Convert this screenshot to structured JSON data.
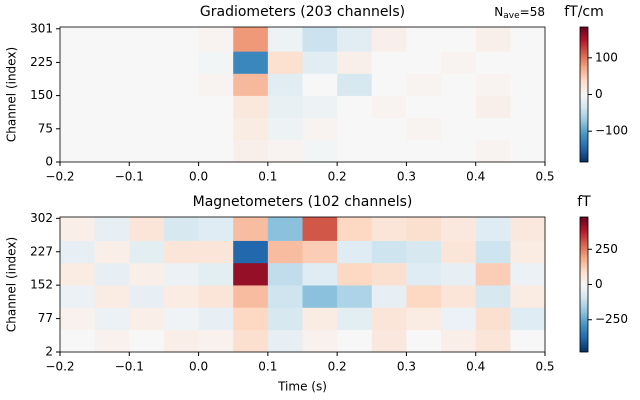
{
  "chart_data": [
    {
      "type": "heatmap",
      "title": "Gradiometers (203 channels)",
      "ylabel": "Channel (index)",
      "annotation": {
        "symbol": "N",
        "subscript": "ave",
        "text": "=58"
      },
      "colorbar_label": "fT/cm",
      "colormap": [
        "#053061",
        "#2166ac",
        "#4393c3",
        "#92c5de",
        "#d1e5f0",
        "#f7f7f7",
        "#fddbc7",
        "#f4a582",
        "#d6604d",
        "#b2182b",
        "#67001f"
      ],
      "clim": [
        -184,
        184
      ],
      "cticks": [
        {
          "value": -100,
          "label": "−100"
        },
        0,
        100
      ],
      "xlim": [
        -0.2,
        0.5
      ],
      "xticks": [
        {
          "value": -0.2,
          "label": "−0.2"
        },
        {
          "value": -0.1,
          "label": "−0.1"
        },
        {
          "value": 0,
          "label": "0.0"
        },
        0.1,
        0.2,
        0.3,
        0.4,
        0.5
      ],
      "ylim": [
        0,
        305
      ],
      "yticks": [
        0,
        75,
        150,
        225,
        301
      ],
      "x_edges": [
        -0.2,
        -0.15,
        -0.1,
        -0.05,
        0,
        0.05,
        0.1,
        0.15,
        0.2,
        0.25,
        0.3,
        0.35,
        0.4,
        0.45,
        0.5
      ],
      "y_edges": [
        0,
        50,
        100,
        150,
        200,
        250,
        305
      ],
      "values": [
        [
          0,
          0,
          0,
          0,
          0,
          10,
          5,
          -5,
          0,
          0,
          0,
          0,
          5,
          0
        ],
        [
          0,
          0,
          0,
          0,
          0,
          15,
          -10,
          5,
          0,
          0,
          5,
          0,
          0,
          0
        ],
        [
          0,
          0,
          0,
          0,
          0,
          20,
          -15,
          -10,
          0,
          5,
          0,
          0,
          10,
          0
        ],
        [
          0,
          0,
          0,
          0,
          5,
          60,
          -20,
          0,
          -30,
          0,
          5,
          0,
          5,
          0
        ],
        [
          0,
          0,
          0,
          0,
          -5,
          -120,
          30,
          -20,
          10,
          0,
          0,
          5,
          0,
          0
        ],
        [
          0,
          0,
          0,
          0,
          5,
          80,
          -10,
          -40,
          -20,
          10,
          0,
          0,
          10,
          0
        ]
      ]
    },
    {
      "type": "heatmap",
      "title": "Magnetometers (102 channels)",
      "ylabel": "Channel (index)",
      "xlabel": "Time (s)",
      "colorbar_label": "fT",
      "colormap": [
        "#053061",
        "#2166ac",
        "#4393c3",
        "#92c5de",
        "#d1e5f0",
        "#f7f7f7",
        "#fddbc7",
        "#f4a582",
        "#d6604d",
        "#b2182b",
        "#67001f"
      ],
      "clim": [
        -479,
        479
      ],
      "cticks": [
        {
          "value": -250,
          "label": "−250"
        },
        0,
        250
      ],
      "xlim": [
        -0.2,
        0.5
      ],
      "xticks": [
        {
          "value": -0.2,
          "label": "−0.2"
        },
        {
          "value": -0.1,
          "label": "−0.1"
        },
        {
          "value": 0,
          "label": "0.0"
        },
        0.1,
        0.2,
        0.3,
        0.4,
        0.5
      ],
      "ylim": [
        2,
        305
      ],
      "yticks": [
        2,
        77,
        152,
        227,
        302
      ],
      "x_edges": [
        -0.2,
        -0.15,
        -0.1,
        -0.05,
        0,
        0.05,
        0.1,
        0.15,
        0.2,
        0.25,
        0.3,
        0.35,
        0.4,
        0.45,
        0.5
      ],
      "y_edges": [
        2,
        52,
        102,
        152,
        202,
        252,
        305
      ],
      "values": [
        [
          0,
          20,
          0,
          30,
          20,
          80,
          -40,
          20,
          0,
          50,
          0,
          30,
          60,
          0
        ],
        [
          20,
          -30,
          30,
          -20,
          -40,
          100,
          -80,
          40,
          -50,
          60,
          40,
          -30,
          80,
          -60
        ],
        [
          -30,
          40,
          -40,
          40,
          60,
          150,
          -100,
          -200,
          -150,
          -40,
          100,
          60,
          -80,
          40
        ],
        [
          40,
          -40,
          30,
          -30,
          -50,
          420,
          -120,
          -60,
          100,
          80,
          -60,
          -40,
          120,
          -30
        ],
        [
          -40,
          30,
          -50,
          60,
          60,
          -380,
          150,
          120,
          -60,
          -100,
          -80,
          60,
          -100,
          40
        ],
        [
          30,
          -40,
          60,
          -80,
          -60,
          150,
          -200,
          300,
          100,
          60,
          80,
          50,
          -60,
          50
        ]
      ]
    }
  ]
}
